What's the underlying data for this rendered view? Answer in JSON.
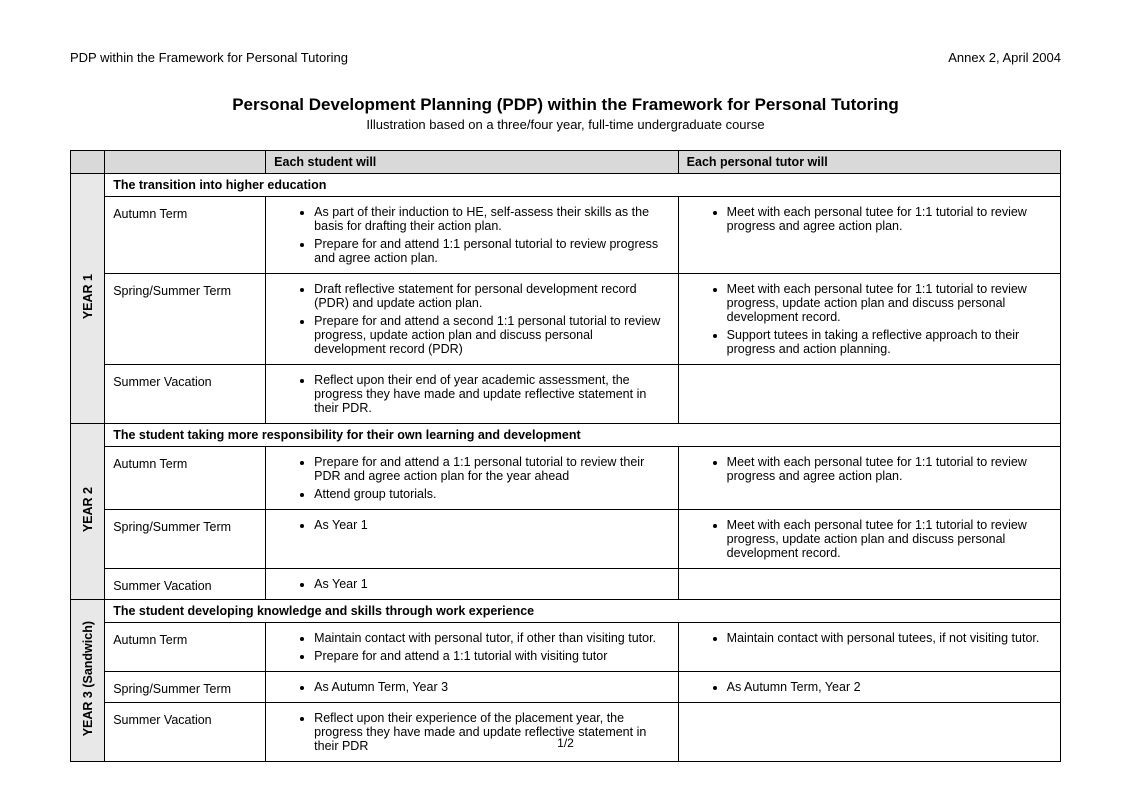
{
  "header": {
    "left": "PDP within the Framework for Personal Tutoring",
    "right": "Annex 2, April 2004"
  },
  "title": "Personal Development Planning (PDP) within the Framework for Personal Tutoring",
  "subtitle": "Illustration based on a three/four year, full-time undergraduate course",
  "columns": {
    "student": "Each student will",
    "tutor": "Each personal tutor will"
  },
  "years": [
    {
      "label": "YEAR 1",
      "phase": "The transition into higher education",
      "rows": [
        {
          "term": "Autumn Term",
          "student": [
            "As part of their induction to HE, self-assess their skills as the basis for drafting their action plan.",
            "Prepare for and attend 1:1 personal tutorial to review progress and agree action plan."
          ],
          "tutor": [
            "Meet with each personal tutee for 1:1 tutorial to review progress and agree action plan."
          ]
        },
        {
          "term": "Spring/Summer Term",
          "student": [
            "Draft reflective statement for personal development record (PDR) and update action plan.",
            "Prepare for and attend a second 1:1 personal tutorial to review progress, update action plan and discuss personal development record (PDR)"
          ],
          "tutor": [
            "Meet with each personal tutee for 1:1 tutorial to review progress, update action plan and discuss personal development record.",
            "Support tutees in taking a reflective approach to their progress and action planning."
          ]
        },
        {
          "term": "Summer Vacation",
          "student": [
            "Reflect upon their end of year academic assessment, the progress they have made and update reflective statement in their PDR."
          ],
          "tutor": []
        }
      ]
    },
    {
      "label": "YEAR 2",
      "phase": "The student taking more responsibility for their own  learning and development",
      "rows": [
        {
          "term": "Autumn Term",
          "student": [
            "Prepare for and attend a 1:1 personal tutorial to review their PDR and agree action plan for the year ahead",
            "Attend group tutorials."
          ],
          "tutor": [
            "Meet with each personal tutee for 1:1 tutorial to review progress and agree action plan."
          ]
        },
        {
          "term": "Spring/Summer Term",
          "student": [
            "As Year 1"
          ],
          "tutor": [
            "Meet with each personal tutee for 1:1 tutorial to review progress, update action plan and discuss personal development record."
          ]
        },
        {
          "term": "Summer Vacation",
          "student": [
            "As Year 1"
          ],
          "tutor": []
        }
      ]
    },
    {
      "label": "YEAR 3 (Sandwich)",
      "phase": "The student developing knowledge and skills through work experience",
      "rows": [
        {
          "term": "Autumn Term",
          "student": [
            "Maintain contact with personal tutor, if other than visiting tutor.",
            "Prepare for and attend a 1:1 tutorial with visiting tutor"
          ],
          "tutor": [
            "Maintain contact with personal tutees, if not visiting tutor."
          ]
        },
        {
          "term": "Spring/Summer Term",
          "student": [
            "As Autumn Term, Year 3"
          ],
          "tutor": [
            "As Autumn Term, Year 2"
          ]
        },
        {
          "term": "Summer Vacation",
          "student": [
            "Reflect upon their experience of the placement year, the progress they have made and update reflective statement in their PDR"
          ],
          "tutor": []
        }
      ]
    }
  ],
  "pageNumber": "1/2"
}
